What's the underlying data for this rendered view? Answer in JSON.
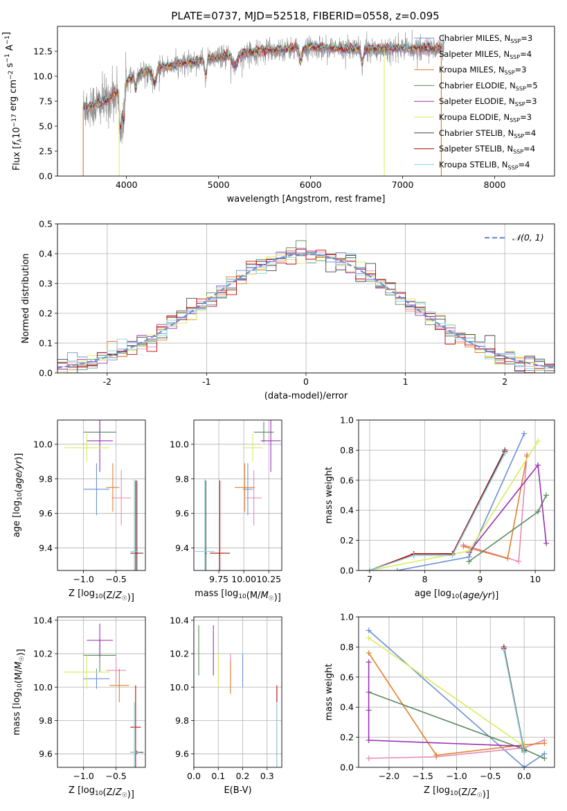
{
  "figure": {
    "title": "PLATE=0737, MJD=52518, FIBERID=0558, z=0.095"
  },
  "series": [
    {
      "name": "Chabrier MILES",
      "nssp": "3",
      "color": "#6a8fd8"
    },
    {
      "name": "Salpeter MILES",
      "nssp": "4",
      "color": "#e788b8"
    },
    {
      "name": "Kroupa MILES",
      "nssp": "3",
      "color": "#e07f2a"
    },
    {
      "name": "Chabrier ELODIE",
      "nssp": "5",
      "color": "#5a8a5a"
    },
    {
      "name": "Salpeter ELODIE",
      "nssp": "3",
      "color": "#9a2fb0"
    },
    {
      "name": "Kroupa ELODIE",
      "nssp": "3",
      "color": "#d8ec5a"
    },
    {
      "name": "Chabrier STELIB",
      "nssp": "4",
      "color": "#444444"
    },
    {
      "name": "Salpeter STELIB",
      "nssp": "4",
      "color": "#c00000"
    },
    {
      "name": "Kroupa STELIB",
      "nssp": "4",
      "color": "#80d4dc"
    }
  ],
  "chart_data": [
    {
      "id": "spectrum",
      "type": "line",
      "xlabel": "wavelength [Angstrom, rest frame]",
      "ylabel": "Flux [f_λ 10^-17 erg cm^-2 s^-1 A^-1]",
      "xlim": [
        3250,
        8650
      ],
      "ylim": [
        0,
        15
      ],
      "xticks": [
        4000,
        5000,
        6000,
        7000,
        8000
      ],
      "yticks": [
        0.0,
        2.5,
        5.0,
        7.5,
        10.0,
        12.5
      ],
      "ytick_labels": [
        "0.0",
        "2.5",
        "5.0",
        "7.5",
        "10.0",
        "12.5"
      ],
      "data_color": "#888888",
      "data_x_range": [
        3530,
        7450
      ],
      "model_x_range": [
        3530,
        7420
      ],
      "continuum_knots": [
        [
          3530,
          6.9
        ],
        [
          3700,
          7.2
        ],
        [
          3800,
          7.6
        ],
        [
          3900,
          8.5
        ],
        [
          4000,
          9.5
        ],
        [
          4200,
          10.5
        ],
        [
          4500,
          11.1
        ],
        [
          5000,
          11.9
        ],
        [
          5500,
          12.6
        ],
        [
          6000,
          12.9
        ],
        [
          6500,
          12.7
        ],
        [
          7000,
          12.8
        ],
        [
          7450,
          12.8
        ]
      ],
      "absorption_features": [
        [
          3934,
          4.5,
          12
        ],
        [
          3968,
          4.0,
          12
        ],
        [
          4101,
          1.5,
          10
        ],
        [
          4304,
          1.5,
          20
        ],
        [
          4861,
          1.8,
          12
        ],
        [
          5175,
          1.3,
          25
        ],
        [
          5890,
          1.6,
          14
        ],
        [
          6563,
          1.5,
          12
        ]
      ],
      "dropouts": [
        [
          3920,
          0.0
        ],
        [
          6800,
          0.0
        ]
      ],
      "legend_position": "upper-right"
    },
    {
      "id": "residuals",
      "type": "histogram",
      "xlabel": "(data-model)/error",
      "ylabel": "Normed distribution",
      "xlim": [
        -2.5,
        2.5
      ],
      "ylim": [
        0,
        0.5
      ],
      "xticks": [
        -2,
        -1,
        0,
        1,
        2
      ],
      "yticks": [
        0.0,
        0.1,
        0.2,
        0.3,
        0.4,
        0.5
      ],
      "ytick_labels": [
        "0.0",
        "0.1",
        "0.2",
        "0.3",
        "0.4",
        "0.5"
      ],
      "bin_width": 0.1,
      "reference": {
        "name": "𝒩(0, 1)",
        "mean": 0,
        "sigma": 1,
        "color": "#6a8fd8"
      },
      "legend_position": "upper-right",
      "grid": true
    },
    {
      "id": "age-vs-z",
      "type": "errorbar",
      "xlabel": "Z [log10(Z/Z☉)]",
      "ylabel": "age  [log10(age/yr)]",
      "xlim": [
        -1.4,
        -0.05
      ],
      "ylim": [
        9.27,
        10.14
      ],
      "xticks": [
        -1.0,
        -0.5
      ],
      "xtick_labels": [
        "−1.0",
        "−0.5"
      ],
      "yticks": [
        9.4,
        9.6,
        9.8,
        10.0
      ],
      "ytick_labels": [
        "9.4",
        "9.6",
        "9.8",
        "10.0"
      ],
      "grid": true,
      "points": [
        {
          "series": 0,
          "x": -0.8,
          "xerr": 0.2,
          "y": 9.74,
          "yerr": 0.15
        },
        {
          "series": 1,
          "x": -0.42,
          "xerr": 0.15,
          "y": 9.69,
          "yerr": 0.16
        },
        {
          "series": 2,
          "x": -0.55,
          "xerr": 0.1,
          "y": 9.75,
          "yerr": 0.14
        },
        {
          "series": 3,
          "x": -0.75,
          "xerr": 0.25,
          "y": 10.07,
          "yerr": 0.06
        },
        {
          "series": 4,
          "x": -0.75,
          "xerr": 0.2,
          "y": 10.02,
          "yerr": 0.18
        },
        {
          "series": 5,
          "x": -0.95,
          "xerr": 0.35,
          "y": 9.98,
          "yerr": 0.08
        },
        {
          "series": 6,
          "x": -0.18,
          "xerr": 0.1,
          "y": 9.37,
          "yerr": 0.42
        },
        {
          "series": 7,
          "x": -0.2,
          "xerr": 0.06,
          "y": 9.37,
          "yerr": 0.42
        },
        {
          "series": 8,
          "x": -0.22,
          "xerr": 0.06,
          "y": 9.38,
          "yerr": 0.42
        }
      ]
    },
    {
      "id": "age-vs-mass",
      "type": "errorbar",
      "xlabel": "mass [log10(M/M☉)]",
      "ylabel": "",
      "xlim": [
        9.5,
        10.38
      ],
      "ylim": [
        9.27,
        10.14
      ],
      "xticks": [
        9.75,
        10.0,
        10.25
      ],
      "xtick_labels": [
        "9.75",
        "10.00",
        "10.25"
      ],
      "yticks": [
        9.4,
        9.6,
        9.8,
        10.0
      ],
      "ytick_labels": [
        "9.4",
        "9.6",
        "9.8",
        "10.0"
      ],
      "grid": true,
      "points": [
        {
          "series": 0,
          "x": 10.04,
          "xerr": 0.05,
          "y": 9.74,
          "yerr": 0.15
        },
        {
          "series": 1,
          "x": 10.1,
          "xerr": 0.08,
          "y": 9.69,
          "yerr": 0.16
        },
        {
          "series": 2,
          "x": 10.01,
          "xerr": 0.1,
          "y": 9.75,
          "yerr": 0.14
        },
        {
          "series": 3,
          "x": 10.2,
          "xerr": 0.1,
          "y": 10.07,
          "yerr": 0.06
        },
        {
          "series": 4,
          "x": 10.27,
          "xerr": 0.1,
          "y": 10.02,
          "yerr": 0.18
        },
        {
          "series": 5,
          "x": 10.09,
          "xerr": 0.1,
          "y": 9.98,
          "yerr": 0.08
        },
        {
          "series": 6,
          "x": 9.62,
          "xerr": 0.01,
          "y": 9.37,
          "yerr": 0.42
        },
        {
          "series": 7,
          "x": 9.76,
          "xerr": 0.1,
          "y": 9.37,
          "yerr": 0.42
        },
        {
          "series": 8,
          "x": 9.61,
          "xerr": 0.1,
          "y": 9.38,
          "yerr": 0.42
        }
      ]
    },
    {
      "id": "weight-vs-age",
      "type": "line",
      "xlabel": "age  [log10(age/yr)]",
      "ylabel": "mass weight",
      "xlim": [
        6.8,
        10.35
      ],
      "ylim": [
        0,
        1.0
      ],
      "xticks": [
        7,
        8,
        9,
        10
      ],
      "yticks": [
        0.0,
        0.2,
        0.4,
        0.6,
        0.8,
        1.0
      ],
      "ytick_labels": [
        "0.0",
        "0.2",
        "0.4",
        "0.6",
        "0.8",
        "1.0"
      ],
      "grid": true,
      "marker": "+",
      "lines": [
        {
          "series": 0,
          "x": [
            7.5,
            8.8,
            9.8
          ],
          "y": [
            0.0,
            0.09,
            0.91
          ]
        },
        {
          "series": 1,
          "x": [
            8.7,
            9.7,
            9.85
          ],
          "y": [
            0.17,
            0.06,
            0.77
          ]
        },
        {
          "series": 2,
          "x": [
            8.7,
            9.5,
            9.85
          ],
          "y": [
            0.16,
            0.08,
            0.76
          ]
        },
        {
          "series": 3,
          "x": [
            8.8,
            10.05,
            10.2
          ],
          "y": [
            0.06,
            0.39,
            0.5
          ]
        },
        {
          "series": 4,
          "x": [
            8.8,
            10.05,
            10.2
          ],
          "y": [
            0.12,
            0.7,
            0.18
          ]
        },
        {
          "series": 5,
          "x": [
            7.0,
            8.8,
            10.05
          ],
          "y": [
            0.0,
            0.13,
            0.86
          ]
        },
        {
          "series": 6,
          "x": [
            7.0,
            7.8,
            8.5,
            9.45
          ],
          "y": [
            0.0,
            0.11,
            0.11,
            0.8
          ]
        },
        {
          "series": 7,
          "x": [
            7.0,
            7.8,
            8.5,
            9.45
          ],
          "y": [
            0.0,
            0.11,
            0.11,
            0.79
          ]
        },
        {
          "series": 8,
          "x": [
            7.0,
            7.8,
            8.5,
            9.45
          ],
          "y": [
            0.0,
            0.1,
            0.1,
            0.78
          ]
        }
      ]
    },
    {
      "id": "mass-vs-z",
      "type": "errorbar",
      "xlabel": "Z [log10(Z/Z☉)]",
      "ylabel": "mass [log10(M/M☉)]",
      "xlim": [
        -1.4,
        -0.05
      ],
      "ylim": [
        9.52,
        10.42
      ],
      "xticks": [
        -1.0,
        -0.5
      ],
      "xtick_labels": [
        "−1.0",
        "−0.5"
      ],
      "yticks": [
        9.6,
        9.8,
        10.0,
        10.2,
        10.4
      ],
      "ytick_labels": [
        "9.6",
        "9.8",
        "10.0",
        "10.2",
        "10.4"
      ],
      "grid": true,
      "points": [
        {
          "series": 0,
          "x": -0.8,
          "xerr": 0.2,
          "y": 10.05,
          "yerr": 0.06
        },
        {
          "series": 1,
          "x": -0.5,
          "xerr": 0.15,
          "y": 10.1,
          "yerr": 0.08
        },
        {
          "series": 2,
          "x": -0.45,
          "xerr": 0.15,
          "y": 10.01,
          "yerr": 0.1
        },
        {
          "series": 3,
          "x": -0.75,
          "xerr": 0.25,
          "y": 10.19,
          "yerr": 0.1
        },
        {
          "series": 4,
          "x": -0.75,
          "xerr": 0.2,
          "y": 10.28,
          "yerr": 0.1
        },
        {
          "series": 5,
          "x": -0.95,
          "xerr": 0.35,
          "y": 10.09,
          "yerr": 0.1
        },
        {
          "series": 6,
          "x": -0.18,
          "xerr": 0.1,
          "y": 9.61,
          "yerr": 0.01
        },
        {
          "series": 7,
          "x": -0.2,
          "xerr": 0.08,
          "y": 9.76,
          "yerr": 0.25
        },
        {
          "series": 8,
          "x": -0.22,
          "xerr": 0.06,
          "y": 9.61,
          "yerr": 0.3
        }
      ]
    },
    {
      "id": "mass-vs-ebv",
      "type": "errorbar",
      "xlabel": "E(B-V)",
      "ylabel": "",
      "xlim": [
        0.0,
        0.36
      ],
      "ylim": [
        9.52,
        10.42
      ],
      "xticks": [
        0.0,
        0.1,
        0.2,
        0.3
      ],
      "xtick_labels": [
        "0.0",
        "0.1",
        "0.2",
        "0.3"
      ],
      "yticks": [
        9.6,
        9.8,
        10.0,
        10.2,
        10.4
      ],
      "ytick_labels": [
        "9.6",
        "9.8",
        "10.0",
        "10.2",
        "10.4"
      ],
      "grid": true,
      "points": [
        {
          "series": 0,
          "x": 0.2,
          "xerr": 0,
          "y": 10.1,
          "yerr": 0.1
        },
        {
          "series": 1,
          "x": 0.15,
          "xerr": 0,
          "y": 10.1,
          "yerr": 0.1
        },
        {
          "series": 2,
          "x": 0.15,
          "xerr": 0,
          "y": 10.06,
          "yerr": 0.1
        },
        {
          "series": 3,
          "x": 0.02,
          "xerr": 0,
          "y": 10.22,
          "yerr": 0.15
        },
        {
          "series": 4,
          "x": 0.08,
          "xerr": 0,
          "y": 10.22,
          "yerr": 0.15
        },
        {
          "series": 5,
          "x": 0.1,
          "xerr": 0,
          "y": 10.1,
          "yerr": 0.1
        },
        {
          "series": 6,
          "x": 0.34,
          "xerr": 0,
          "y": 9.61,
          "yerr": 0.01
        },
        {
          "series": 7,
          "x": 0.34,
          "xerr": 0,
          "y": 9.76,
          "yerr": 0.25
        },
        {
          "series": 8,
          "x": 0.34,
          "xerr": 0,
          "y": 9.61,
          "yerr": 0.3
        }
      ]
    },
    {
      "id": "weight-vs-z",
      "type": "line",
      "xlabel": "Z [log10(Z/Z☉)]",
      "ylabel": "mass weight",
      "xlim": [
        -2.45,
        0.45
      ],
      "ylim": [
        0,
        1.0
      ],
      "xticks": [
        -2.0,
        -1.5,
        -1.0,
        -0.5,
        0.0
      ],
      "xtick_labels": [
        "−2.0",
        "−1.5",
        "−1.0",
        "−0.5",
        "0.0"
      ],
      "yticks": [
        0.0,
        0.2,
        0.4,
        0.6,
        0.8,
        1.0
      ],
      "ytick_labels": [
        "0.0",
        "0.2",
        "0.4",
        "0.6",
        "0.8",
        "1.0"
      ],
      "grid": true,
      "marker": "+",
      "lines": [
        {
          "series": 0,
          "x": [
            -2.3,
            0.0,
            0.3
          ],
          "y": [
            0.91,
            0.0,
            0.09
          ]
        },
        {
          "series": 1,
          "x": [
            -2.3,
            -1.3,
            0.0,
            0.3
          ],
          "y": [
            0.06,
            0.07,
            0.13,
            0.18
          ]
        },
        {
          "series": 2,
          "x": [
            -2.3,
            -1.3,
            0.0,
            0.3
          ],
          "y": [
            0.76,
            0.08,
            0.15,
            0.16
          ]
        },
        {
          "series": 3,
          "x": [
            -2.3,
            0.0,
            0.3
          ],
          "y": [
            0.5,
            0.12,
            0.06
          ]
        },
        {
          "series": 4,
          "x": [
            -2.3,
            -2.3,
            -2.3,
            0.0
          ],
          "y": [
            0.7,
            0.38,
            0.18,
            0.14
          ]
        },
        {
          "series": 5,
          "x": [
            -2.3,
            0.0
          ],
          "y": [
            0.86,
            0.14
          ]
        },
        {
          "series": 6,
          "x": [
            -0.3,
            0.0
          ],
          "y": [
            0.8,
            0.11
          ]
        },
        {
          "series": 7,
          "x": [
            -0.3,
            0.0
          ],
          "y": [
            0.79,
            0.1
          ]
        },
        {
          "series": 8,
          "x": [
            -0.3,
            0.0
          ],
          "y": [
            0.78,
            0.1
          ]
        }
      ]
    }
  ]
}
